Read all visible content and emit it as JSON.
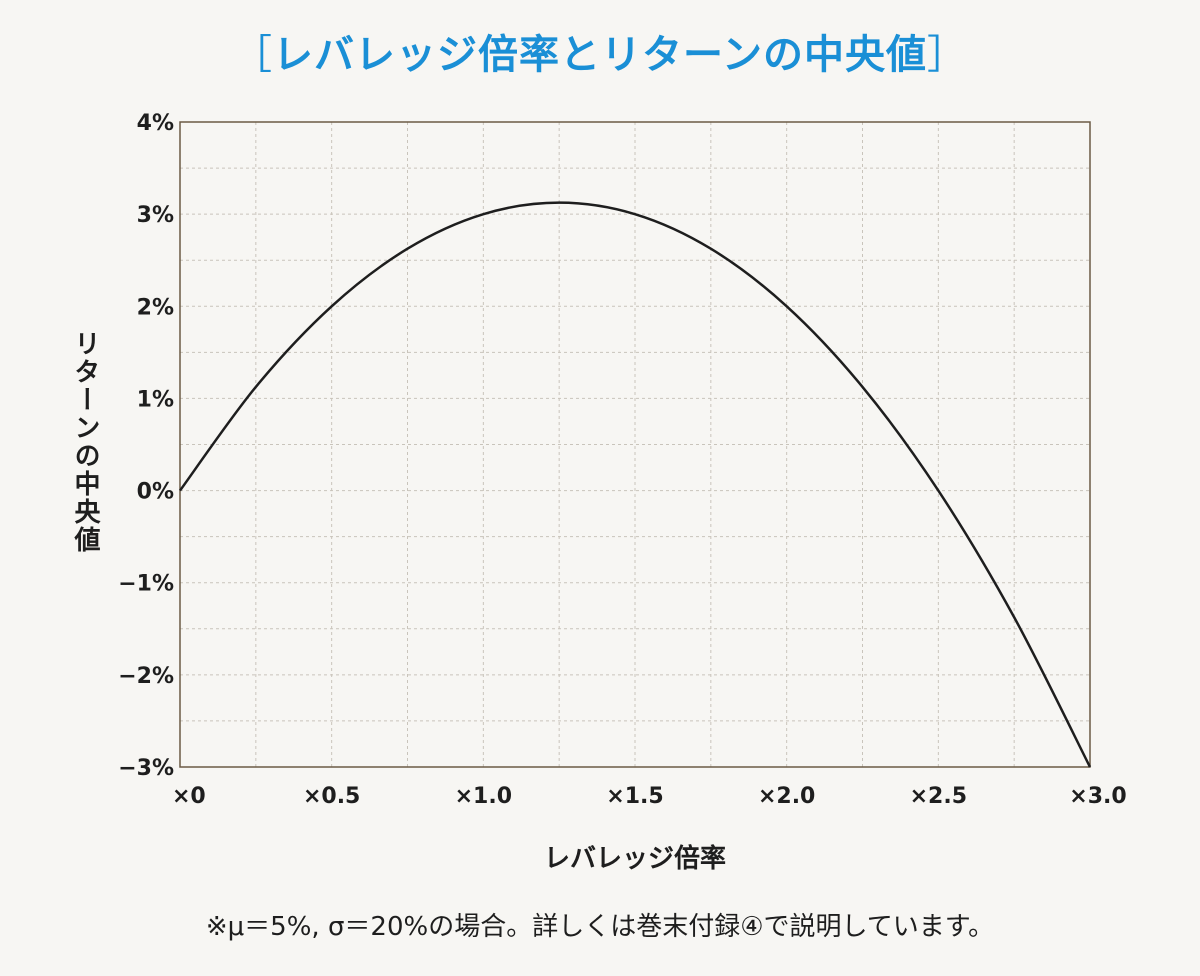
{
  "header": {
    "bracket_open": "［",
    "title": "レバレッジ倍率とリターンの中央値",
    "bracket_close": "］"
  },
  "footnote": "※μ＝5%, σ＝20%の場合。詳しくは巻末付録④で説明しています。",
  "colors": {
    "title": "#1a8fd6",
    "curve": "#1e1e1e",
    "grid": "#c9c4bb",
    "frame": "#6b5a44"
  },
  "chart_data": {
    "type": "line",
    "title": "レバレッジ倍率とリターンの中央値",
    "xlabel": "レバレッジ倍率",
    "ylabel": "リターンの中央値",
    "xlim": [
      0,
      3.0
    ],
    "ylim": [
      -3,
      4
    ],
    "x_ticks": [
      0,
      0.5,
      1.0,
      1.5,
      2.0,
      2.5,
      3.0
    ],
    "x_tick_labels": [
      "×0",
      "×0.5",
      "×1.0",
      "×1.5",
      "×2.0",
      "×2.5",
      "×3.0"
    ],
    "y_ticks": [
      4,
      3,
      2,
      1,
      0,
      -1,
      -2,
      -3
    ],
    "y_tick_labels": [
      "4%",
      "3%",
      "2%",
      "1%",
      "0%",
      "−1%",
      "−2%",
      "−3%"
    ],
    "grid": true,
    "series": [
      {
        "x": [
          0,
          0.25,
          0.5,
          0.75,
          1.0,
          1.25,
          1.5,
          1.75,
          2.0,
          2.25,
          2.5,
          2.75,
          3.0
        ],
        "y": [
          0,
          1.125,
          2.0,
          2.625,
          3.0,
          3.125,
          3.0,
          2.625,
          2.0,
          1.125,
          0,
          -1.375,
          -3.0
        ]
      }
    ]
  }
}
